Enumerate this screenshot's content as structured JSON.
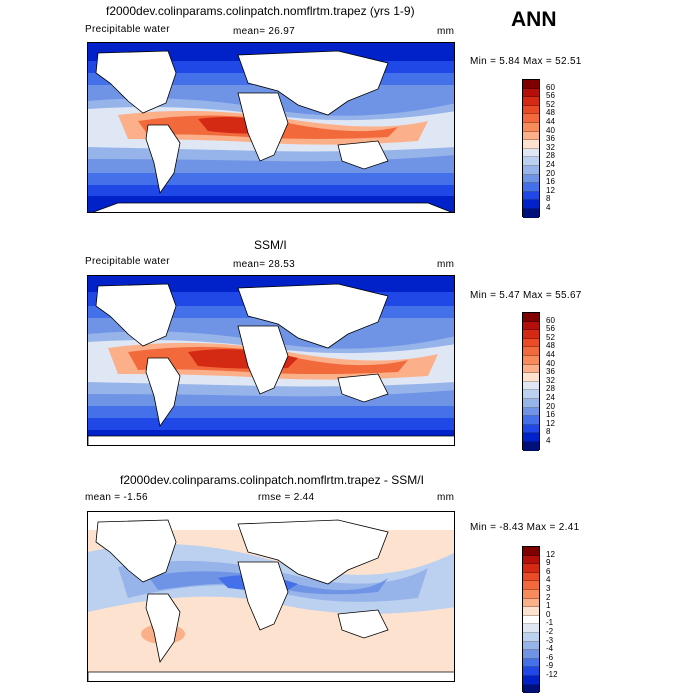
{
  "season": "ANN",
  "panels": [
    {
      "title": "f2000dev.colinparams.colinpatch.nomflrtm.trapez (yrs 1-9)",
      "variable": "Precipitable water",
      "stat": "mean=   26.97",
      "units": "mm",
      "minmax": "Min =    5.84  Max =   52.51",
      "colorbar_labels": [
        "60",
        "56",
        "52",
        "48",
        "44",
        "40",
        "36",
        "32",
        "28",
        "24",
        "20",
        "16",
        "12",
        "8",
        "4"
      ]
    },
    {
      "title": "SSM/I",
      "variable": "Precipitable water",
      "stat": "mean=   28.53",
      "units": "mm",
      "minmax": "Min =    5.47  Max =   55.67",
      "colorbar_labels": [
        "60",
        "56",
        "52",
        "48",
        "44",
        "40",
        "36",
        "32",
        "28",
        "24",
        "20",
        "16",
        "12",
        "8",
        "4"
      ]
    },
    {
      "title": "f2000dev.colinparams.colinpatch.nomflrtm.trapez - SSM/I",
      "variable": "mean =   -1.56",
      "stat": "rmse =    2.44",
      "units": "mm",
      "minmax": "Min =  -8.43  Max =    2.41",
      "colorbar_labels": [
        "12",
        "9",
        "6",
        "4",
        "3",
        "2",
        "1",
        "0",
        "-1",
        "-2",
        "-3",
        "-4",
        "-6",
        "-9",
        "-12"
      ]
    }
  ],
  "chart_data": [
    {
      "type": "heatmap",
      "title": "f2000dev.colinparams.colinpatch.nomflrtm.trapez (yrs 1-9)",
      "variable": "Precipitable water",
      "units": "mm",
      "mean": 26.97,
      "min": 5.84,
      "max": 52.51,
      "contour_levels": [
        4,
        8,
        12,
        16,
        20,
        24,
        28,
        32,
        36,
        40,
        44,
        48,
        52,
        56,
        60
      ]
    },
    {
      "type": "heatmap",
      "title": "SSM/I",
      "variable": "Precipitable water",
      "units": "mm",
      "mean": 28.53,
      "min": 5.47,
      "max": 55.67,
      "contour_levels": [
        4,
        8,
        12,
        16,
        20,
        24,
        28,
        32,
        36,
        40,
        44,
        48,
        52,
        56,
        60
      ]
    },
    {
      "type": "heatmap",
      "title": "f2000dev.colinparams.colinpatch.nomflrtm.trapez - SSM/I",
      "units": "mm",
      "mean": -1.56,
      "rmse": 2.44,
      "min": -8.43,
      "max": 2.41,
      "contour_levels": [
        -12,
        -9,
        -6,
        -4,
        -3,
        -2,
        -1,
        0,
        1,
        2,
        3,
        4,
        6,
        9,
        12
      ]
    }
  ],
  "colors": {
    "abs_scale": [
      "#7f0000",
      "#b40f0a",
      "#d42a14",
      "#ea4a26",
      "#f26a3c",
      "#f78c5a",
      "#fbb08a",
      "#fde3cf",
      "#dfe7f5",
      "#bcd0ef",
      "#97b4ea",
      "#6f94e6",
      "#4470ea",
      "#1f48e6",
      "#0022c8",
      "#00107a"
    ],
    "diff_scale": [
      "#7f0000",
      "#b40f0a",
      "#d42a14",
      "#ea4a26",
      "#f26a3c",
      "#f78c5a",
      "#fbb08a",
      "#fde3cf",
      "#ffffff",
      "#dfe7f5",
      "#bcd0ef",
      "#97b4ea",
      "#6f94e6",
      "#4470ea",
      "#1f48e6",
      "#0022c8",
      "#00107a"
    ]
  }
}
